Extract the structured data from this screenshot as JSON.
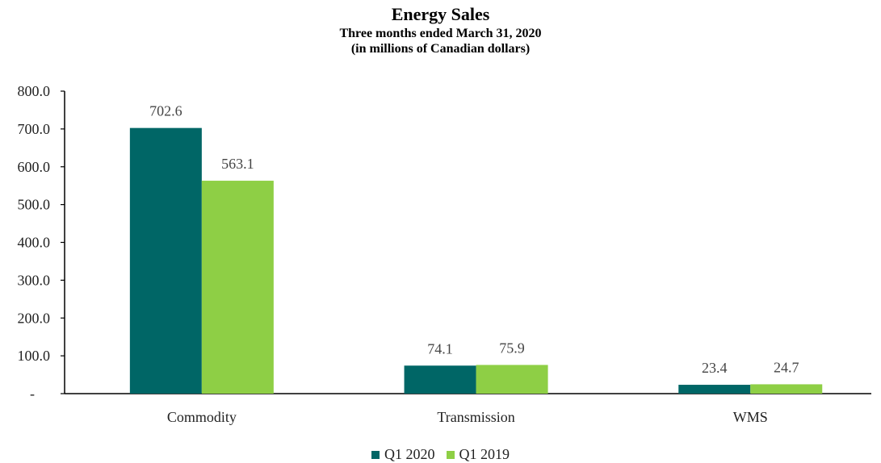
{
  "chart_data": {
    "type": "bar",
    "title": "Energy Sales",
    "subtitle_lines": [
      "Three months ended March 31, 2020",
      "(in millions of Canadian dollars)"
    ],
    "categories": [
      "Commodity",
      "Transmission",
      "WMS"
    ],
    "series": [
      {
        "name": "Q1 2020",
        "color": "#006666",
        "values": [
          702.6,
          74.1,
          23.4
        ]
      },
      {
        "name": "Q1 2019",
        "color": "#8ECF45",
        "values": [
          563.1,
          75.9,
          24.7
        ]
      }
    ],
    "ylim": [
      0,
      800
    ],
    "yticks": [
      "-",
      "100.0",
      "200.0",
      "300.0",
      "400.0",
      "500.0",
      "600.0",
      "700.0",
      "800.0"
    ],
    "grid": false,
    "legend_position": "bottom"
  }
}
